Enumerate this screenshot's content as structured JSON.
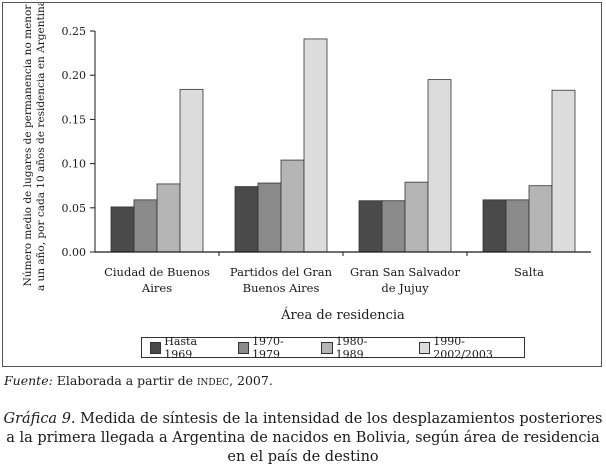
{
  "colors": {
    "s1": "#4a4a4a",
    "s2": "#8a8a8a",
    "s3": "#b5b5b5",
    "s4": "#dcdcdc",
    "axis": "#1a1a1a"
  },
  "chart_data": {
    "type": "bar",
    "categories": [
      [
        "Ciudad de Buenos",
        "Aires"
      ],
      [
        "Partidos del Gran",
        "Buenos Aires"
      ],
      [
        "Gran San Salvador",
        "de Jujuy"
      ],
      [
        "Salta"
      ]
    ],
    "series": [
      {
        "name": "Hasta 1969",
        "values": [
          0.051,
          0.074,
          0.058,
          0.059
        ]
      },
      {
        "name": "1970-1979",
        "values": [
          0.059,
          0.078,
          0.058,
          0.059
        ]
      },
      {
        "name": "1980-1989",
        "values": [
          0.077,
          0.104,
          0.079,
          0.075
        ]
      },
      {
        "name": "1990-2002/2003",
        "values": [
          0.184,
          0.241,
          0.195,
          0.183
        ]
      }
    ],
    "yticks": [
      "0.00",
      "0.05",
      "0.10",
      "0.15",
      "0.20",
      "0.25"
    ],
    "ylim": [
      0,
      0.25
    ],
    "xlabel": "Área de residencia",
    "ylabel": [
      "Número medio de lugares de permanencia no menor",
      "a un año, por cada 10 años de residencia en Argentina"
    ],
    "legend_position": "bottom"
  },
  "source": {
    "label": "Fuente:",
    "text": " Elaborada a partir de ",
    "org": "indec",
    "tail": ", 2007."
  },
  "caption": {
    "label": "Gráfica 9.",
    "line1": " Medida de síntesis de la intensidad de los desplazamientos posteriores",
    "line2": "a la primera llegada a Argentina de nacidos en Bolivia, según área de residencia",
    "line3": "en el país de destino"
  }
}
